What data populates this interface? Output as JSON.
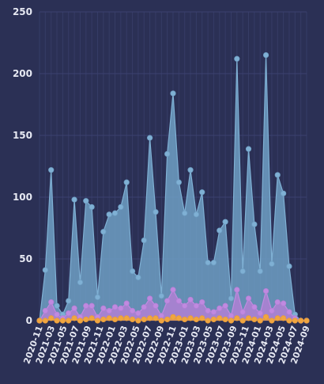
{
  "chart_data": {
    "type": "area",
    "title": "",
    "xlabel": "",
    "ylabel": "",
    "ylim": [
      0,
      250
    ],
    "yticks": [
      0,
      50,
      100,
      150,
      200,
      250
    ],
    "grid": true,
    "legend": "none",
    "x": [
      "2020-11",
      "2020-12",
      "2021-01",
      "2021-02",
      "2021-03",
      "2021-04",
      "2021-05",
      "2021-06",
      "2021-07",
      "2021-08",
      "2021-09",
      "2021-10",
      "2021-11",
      "2021-12",
      "2022-01",
      "2022-02",
      "2022-03",
      "2022-04",
      "2022-05",
      "2022-06",
      "2022-07",
      "2022-08",
      "2022-09",
      "2022-10",
      "2022-11",
      "2022-12",
      "2023-01",
      "2023-02",
      "2023-03",
      "2023-04",
      "2023-05",
      "2023-06",
      "2023-07",
      "2023-08",
      "2023-09",
      "2023-10",
      "2023-11",
      "2023-12",
      "2024-01",
      "2024-02",
      "2024-03",
      "2024-04",
      "2024-05",
      "2024-06",
      "2024-07",
      "2024-08",
      "2024-09"
    ],
    "x_tick_labels": [
      "2020-11",
      "2021-03",
      "2021-05",
      "2021-07",
      "2021-09",
      "2021-11",
      "2022-01",
      "2022-03",
      "2022-05",
      "2022-07",
      "2022-09",
      "2022-11",
      "2023-01",
      "2023-03",
      "2023-05",
      "2023-07",
      "2023-09",
      "2023-11",
      "2024-01",
      "2024-03",
      "2024-05",
      "2024-07",
      "2024-09"
    ],
    "series": [
      {
        "color": "#6f9fc4",
        "stroke": "#7fb0d4",
        "values": [
          0,
          41,
          122,
          12,
          5,
          16,
          98,
          31,
          97,
          92,
          19,
          72,
          86,
          87,
          92,
          112,
          40,
          35,
          65,
          148,
          88,
          20,
          135,
          184,
          112,
          87,
          122,
          86,
          104,
          47,
          47,
          73,
          80,
          18,
          212,
          40,
          139,
          78,
          40,
          215,
          46,
          118,
          103,
          44,
          5,
          0,
          0
        ]
      },
      {
        "color": "#b57fd6",
        "stroke": "#c08ae0",
        "values": [
          0,
          8,
          15,
          5,
          2,
          6,
          10,
          3,
          12,
          12,
          3,
          10,
          8,
          11,
          10,
          14,
          8,
          6,
          11,
          18,
          12,
          4,
          16,
          25,
          16,
          12,
          17,
          12,
          15,
          8,
          7,
          10,
          12,
          4,
          25,
          7,
          18,
          11,
          6,
          24,
          8,
          15,
          14,
          7,
          2,
          0,
          0
        ]
      },
      {
        "color": "#e89c3a",
        "stroke": "#f0a640",
        "values": [
          0,
          0,
          2,
          0,
          0,
          0,
          2,
          0,
          1,
          2,
          0,
          1,
          2,
          1,
          2,
          2,
          1,
          0,
          1,
          2,
          2,
          0,
          1,
          3,
          2,
          1,
          2,
          1,
          2,
          0,
          1,
          2,
          1,
          0,
          2,
          0,
          2,
          1,
          0,
          3,
          0,
          2,
          2,
          0,
          0,
          0,
          0
        ]
      }
    ]
  }
}
